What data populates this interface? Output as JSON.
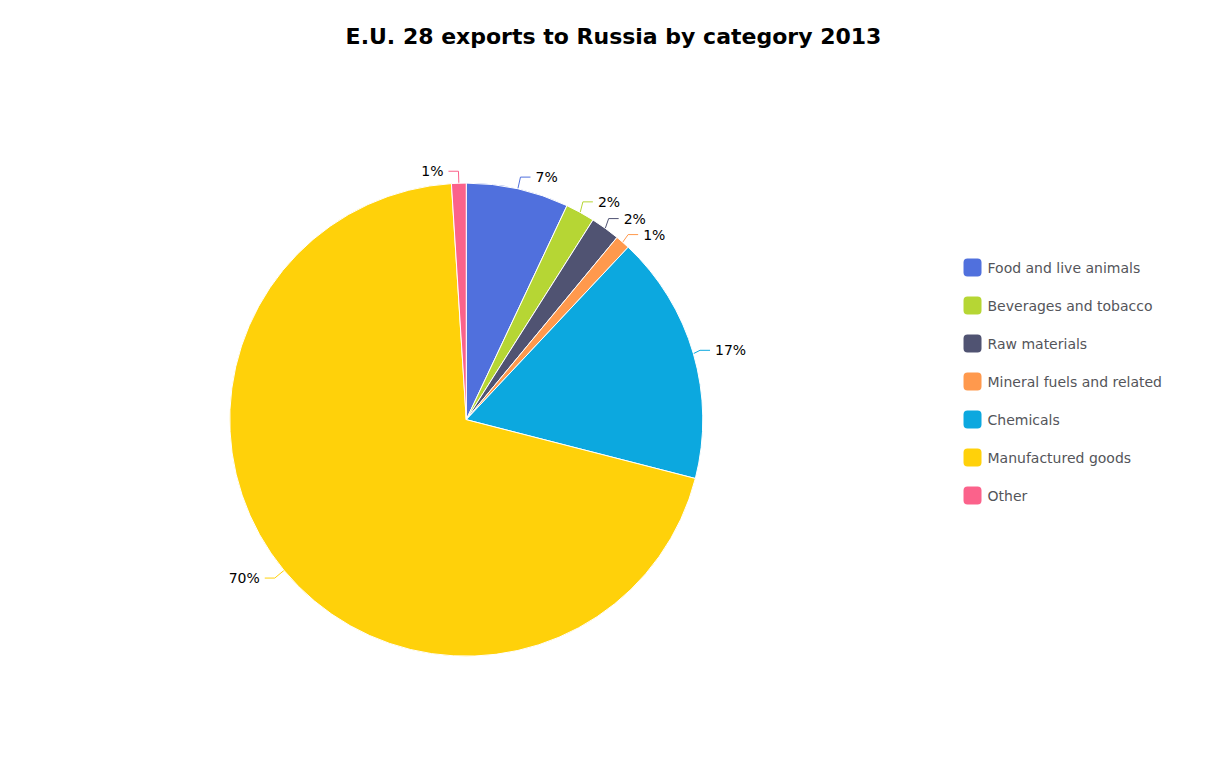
{
  "chart_data": {
    "type": "pie",
    "title": "E.U. 28 exports to Russia by category 2013",
    "categories": [
      "Food and live animals",
      "Beverages and tobacco",
      "Raw materials",
      "Mineral fuels and related",
      "Chemicals",
      "Manufactured goods",
      "Other"
    ],
    "values": [
      7,
      2,
      2,
      1,
      17,
      70,
      1
    ],
    "value_labels": [
      "7%",
      "2%",
      "2%",
      "1%",
      "17%",
      "70%",
      "1%"
    ],
    "data_labels": true,
    "legend": "right"
  }
}
